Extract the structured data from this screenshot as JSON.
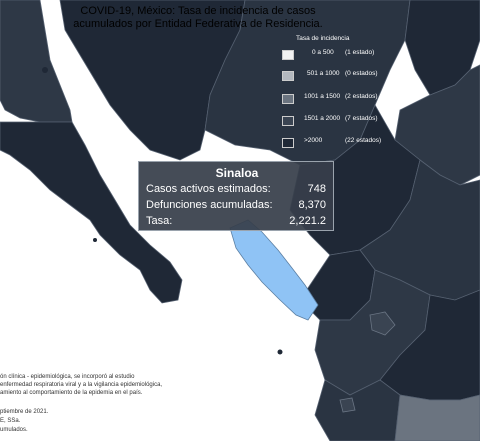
{
  "title": {
    "line1": "COVID-19, México: Tasa de incidencia de casos",
    "line2": "acumulados por Entidad Federativa de Residencia."
  },
  "legend": {
    "title": "Tasa de incidencia",
    "items": [
      {
        "range": "0 a 500",
        "count": "(1 estado)",
        "color": "#f2f2f2"
      },
      {
        "range": "501 a 1000",
        "count": "(0 estados)",
        "color": "#b3b8bf"
      },
      {
        "range": "1001 a 1500",
        "count": "(2 estados)",
        "color": "#6b7480"
      },
      {
        "range": "1501 a 2000",
        "count": "(7 estados)",
        "color": "#3a4452"
      },
      {
        "range": ">2000",
        "count": "(22 estados)",
        "color": "#1f2836"
      }
    ]
  },
  "tooltip": {
    "state": "Sinaloa",
    "rows": [
      {
        "label": "Casos activos estimados:",
        "value": "748"
      },
      {
        "label": "Defunciones acumuladas:",
        "value": "8,370"
      },
      {
        "label": "Tasa:",
        "value": "2,221.2"
      }
    ]
  },
  "notes": [
    "ón clínica - epidemiológica, se incorporó al estudio",
    "enfermedad respiratoria viral y a la vigilancia epidemiológica,",
    "amiento al comportamiento de la epidemia en el país.",
    "ptiembre de 2021.",
    "E, SSa.",
    "umulados."
  ],
  "colors": {
    "ocean": "#ffffff",
    "states_dark": "#1f2836",
    "states_mid": "#2e3846",
    "highlight_sinaloa": "#8fc3f5",
    "state_gray": "#6b7480",
    "borders": "#556070"
  }
}
